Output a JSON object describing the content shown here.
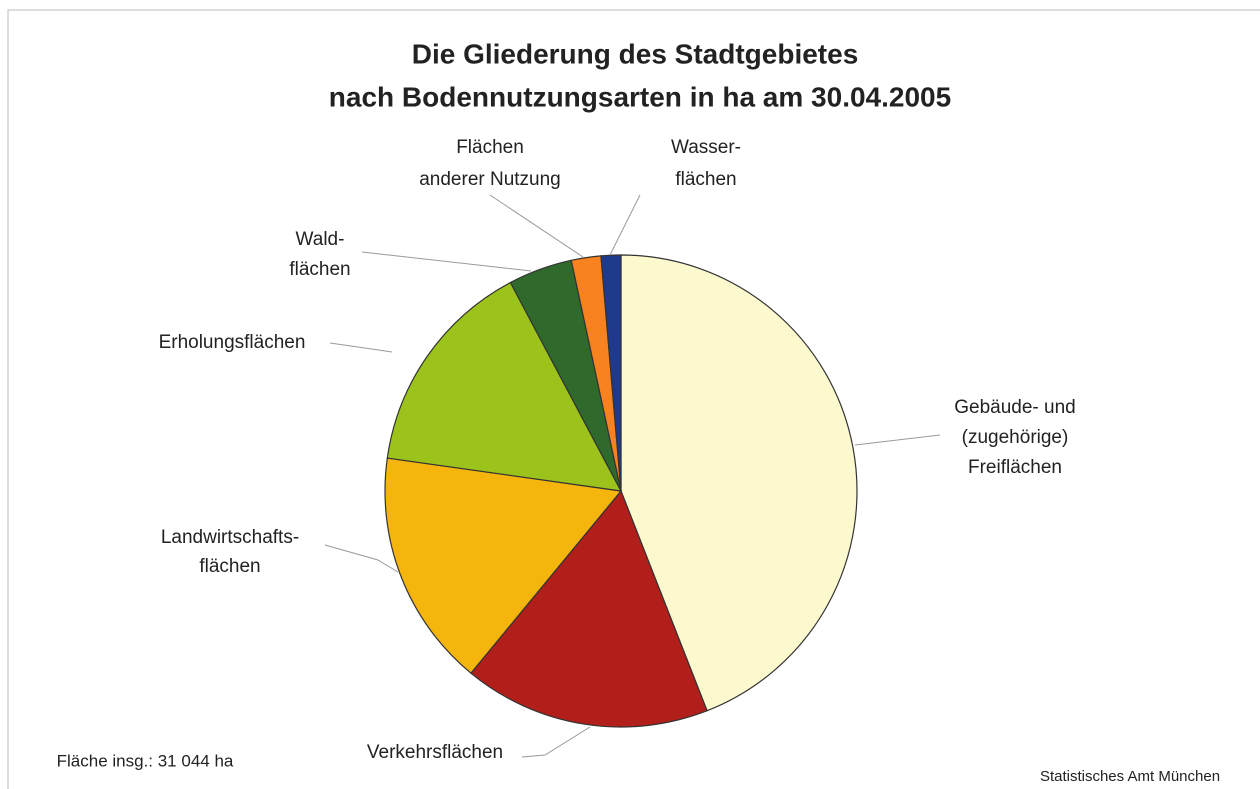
{
  "chart_data": {
    "type": "pie",
    "title": [
      "Die Gliederung des Stadtgebietes",
      "nach Bodennutzungsarten in ha am 30.04.2005"
    ],
    "categories": [
      [
        "Gebäude- und",
        "(zugehörige)",
        "Freiflächen"
      ],
      [
        "Verkehrsflächen"
      ],
      [
        "Landwirtschafts-",
        "flächen"
      ],
      [
        "Erholungsflächen"
      ],
      [
        "Wald-",
        "flächen"
      ],
      [
        "Flächen",
        "anderer Nutzung"
      ],
      [
        "Wasser-",
        "flächen"
      ]
    ],
    "values": [
      13680,
      5250,
      5050,
      4660,
      1360,
      630,
      420
    ],
    "colors": [
      "#fdf9cf",
      "#b21f1a",
      "#f6b50c",
      "#9cc21c",
      "#2f6a2c",
      "#f7821f",
      "#1f3a8c"
    ],
    "notes": [
      "Fläche insg.: 31 044 ha",
      "Statistisches Amt München"
    ]
  }
}
